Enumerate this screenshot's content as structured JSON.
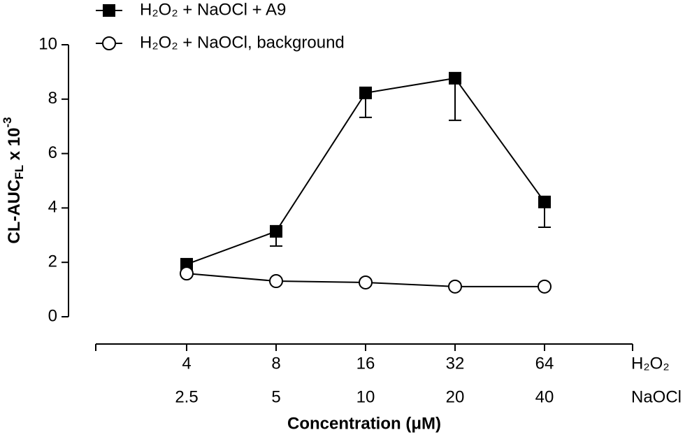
{
  "chart_data": {
    "type": "line",
    "categories": [
      "4",
      "8",
      "16",
      "32",
      "64"
    ],
    "categories_row2": [
      "2.5",
      "5",
      "10",
      "20",
      "40"
    ],
    "row_labels": [
      "H₂O₂",
      "NaOCl"
    ],
    "x_label": "Concentration (μM)",
    "y_label": {
      "base": "CL-AUC",
      "subscript": "FL",
      "middle": " x 10",
      "superscript": "-3"
    },
    "ylim": [
      0,
      10
    ],
    "yticks": [
      0,
      2,
      4,
      6,
      8,
      10
    ],
    "series": [
      {
        "name": "H₂O₂ + NaOCl + A9",
        "color": "#000000",
        "marker": "square",
        "values": [
          1.93,
          3.14,
          8.23,
          8.77,
          4.22
        ],
        "errors": [
          0.1,
          0.54,
          0.9,
          1.55,
          0.93
        ]
      },
      {
        "name": "H₂O₂ + NaOCl, background",
        "color": "#000000",
        "marker": "circle",
        "values": [
          1.59,
          1.31,
          1.26,
          1.11,
          1.11
        ]
      }
    ]
  }
}
